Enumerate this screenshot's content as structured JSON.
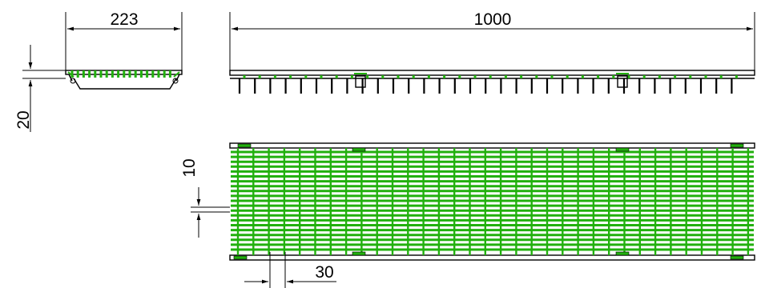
{
  "dimensions": {
    "side_width": "223",
    "length": "1000",
    "height": "20",
    "bar_spacing": "10",
    "bar_pitch": "30"
  },
  "colors": {
    "line": "#000000",
    "grating": "#22b00e"
  }
}
